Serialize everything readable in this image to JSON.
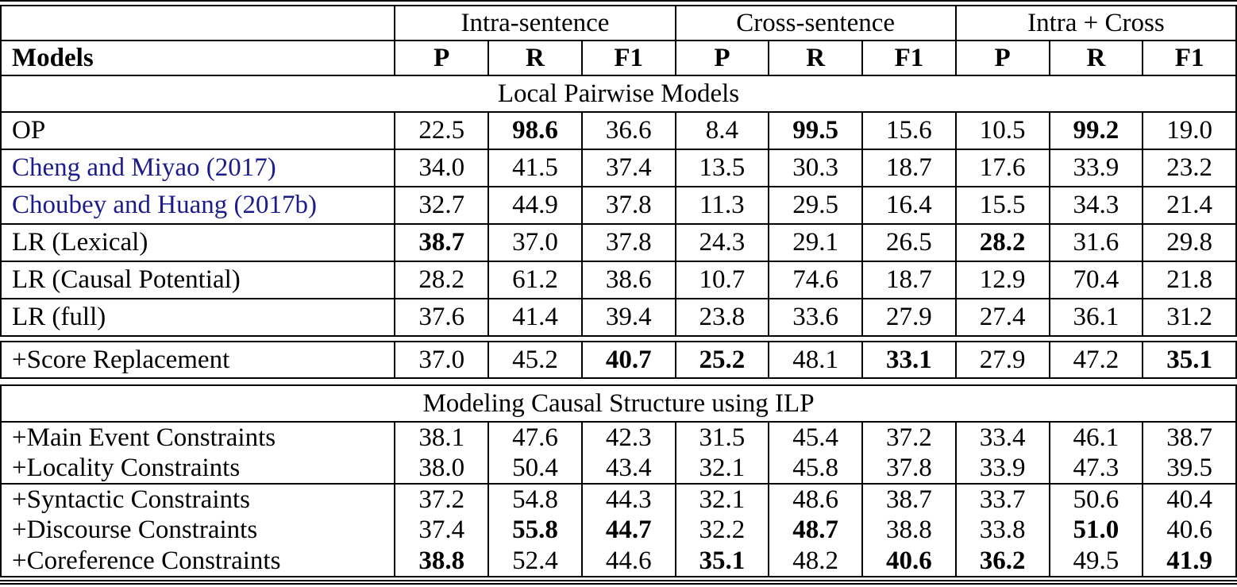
{
  "table": {
    "group_headers": [
      "Intra-sentence",
      "Cross-sentence",
      "Intra + Cross"
    ],
    "models_header": "Models",
    "metric_headers": [
      "P",
      "R",
      "F1"
    ],
    "section_local": "Local Pairwise Models",
    "section_ilp": "Modeling Causal Structure using ILP",
    "citation_color": "#1c1c8c",
    "local_rows": [
      {
        "label": "OP",
        "cite": false,
        "values": [
          "22.5",
          "98.6",
          "36.6",
          "8.4",
          "99.5",
          "15.6",
          "10.5",
          "99.2",
          "19.0"
        ],
        "bold": [
          0,
          1,
          0,
          0,
          1,
          0,
          0,
          1,
          0
        ]
      },
      {
        "label": "Cheng and Miyao (2017)",
        "cite": true,
        "values": [
          "34.0",
          "41.5",
          "37.4",
          "13.5",
          "30.3",
          "18.7",
          "17.6",
          "33.9",
          "23.2"
        ],
        "bold": [
          0,
          0,
          0,
          0,
          0,
          0,
          0,
          0,
          0
        ]
      },
      {
        "label": "Choubey and Huang (2017b)",
        "cite": true,
        "values": [
          "32.7",
          "44.9",
          "37.8",
          "11.3",
          "29.5",
          "16.4",
          "15.5",
          "34.3",
          "21.4"
        ],
        "bold": [
          0,
          0,
          0,
          0,
          0,
          0,
          0,
          0,
          0
        ]
      },
      {
        "label": "LR (Lexical)",
        "cite": false,
        "values": [
          "38.7",
          "37.0",
          "37.8",
          "24.3",
          "29.1",
          "26.5",
          "28.2",
          "31.6",
          "29.8"
        ],
        "bold": [
          1,
          0,
          0,
          0,
          0,
          0,
          1,
          0,
          0
        ]
      },
      {
        "label": "LR (Causal Potential)",
        "cite": false,
        "values": [
          "28.2",
          "61.2",
          "38.6",
          "10.7",
          "74.6",
          "18.7",
          "12.9",
          "70.4",
          "21.8"
        ],
        "bold": [
          0,
          0,
          0,
          0,
          0,
          0,
          0,
          0,
          0
        ]
      },
      {
        "label": "LR (full)",
        "cite": false,
        "values": [
          "37.6",
          "41.4",
          "39.4",
          "23.8",
          "33.6",
          "27.9",
          "27.4",
          "36.1",
          "31.2"
        ],
        "bold": [
          0,
          0,
          0,
          0,
          0,
          0,
          0,
          0,
          0
        ]
      }
    ],
    "score_rows": [
      {
        "label": "+Score Replacement",
        "cite": false,
        "values": [
          "37.0",
          "45.2",
          "40.7",
          "25.2",
          "48.1",
          "33.1",
          "27.9",
          "47.2",
          "35.1"
        ],
        "bold": [
          0,
          0,
          1,
          1,
          0,
          1,
          0,
          0,
          1
        ]
      }
    ],
    "ilp_group1": [
      {
        "label": "+Main Event Constraints",
        "cite": false,
        "values": [
          "38.1",
          "47.6",
          "42.3",
          "31.5",
          "45.4",
          "37.2",
          "33.4",
          "46.1",
          "38.7"
        ],
        "bold": [
          0,
          0,
          0,
          0,
          0,
          0,
          0,
          0,
          0
        ]
      },
      {
        "label": "+Locality Constraints",
        "cite": false,
        "values": [
          "38.0",
          "50.4",
          "43.4",
          "32.1",
          "45.8",
          "37.8",
          "33.9",
          "47.3",
          "39.5"
        ],
        "bold": [
          0,
          0,
          0,
          0,
          0,
          0,
          0,
          0,
          0
        ]
      }
    ],
    "ilp_group2": [
      {
        "label": "+Syntactic Constraints",
        "cite": false,
        "values": [
          "37.2",
          "54.8",
          "44.3",
          "32.1",
          "48.6",
          "38.7",
          "33.7",
          "50.6",
          "40.4"
        ],
        "bold": [
          0,
          0,
          0,
          0,
          0,
          0,
          0,
          0,
          0
        ]
      },
      {
        "label": "+Discourse Constraints",
        "cite": false,
        "values": [
          "37.4",
          "55.8",
          "44.7",
          "32.2",
          "48.7",
          "38.8",
          "33.8",
          "51.0",
          "40.6"
        ],
        "bold": [
          0,
          1,
          1,
          0,
          1,
          0,
          0,
          1,
          0
        ]
      },
      {
        "label": "+Coreference Constraints",
        "cite": false,
        "values": [
          "38.8",
          "52.4",
          "44.6",
          "35.1",
          "48.2",
          "40.6",
          "36.2",
          "49.5",
          "41.9"
        ],
        "bold": [
          1,
          0,
          0,
          1,
          0,
          1,
          1,
          0,
          1
        ]
      }
    ]
  }
}
